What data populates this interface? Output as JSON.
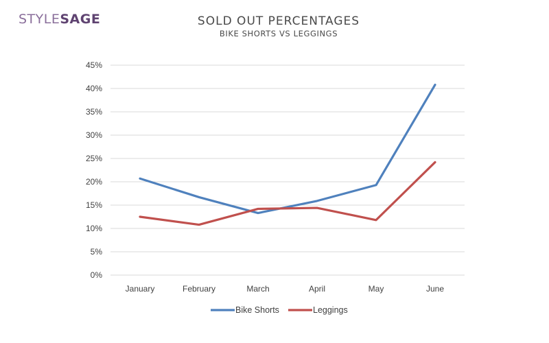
{
  "logo": {
    "part1": "STYLE",
    "part2": "SAGE"
  },
  "chart_data": {
    "type": "line",
    "title": "SOLD OUT PERCENTAGES",
    "subtitle": "BIKE SHORTS VS LEGGINGS",
    "xlabel": "",
    "ylabel": "",
    "categories": [
      "January",
      "February",
      "March",
      "April",
      "May",
      "June"
    ],
    "ylim": [
      0,
      45
    ],
    "yticks": [
      0,
      5,
      10,
      15,
      20,
      25,
      30,
      35,
      40,
      45
    ],
    "ytick_labels": [
      "0%",
      "5%",
      "10%",
      "15%",
      "20%",
      "25%",
      "30%",
      "35%",
      "40%",
      "45%"
    ],
    "grid": true,
    "legend_position": "bottom",
    "series": [
      {
        "name": "Bike Shorts",
        "color": "#4f81bd",
        "values": [
          20.7,
          16.7,
          13.3,
          15.9,
          19.3,
          40.8
        ]
      },
      {
        "name": "Leggings",
        "color": "#c0504d",
        "values": [
          12.5,
          10.8,
          14.2,
          14.4,
          11.8,
          24.2
        ]
      }
    ]
  }
}
